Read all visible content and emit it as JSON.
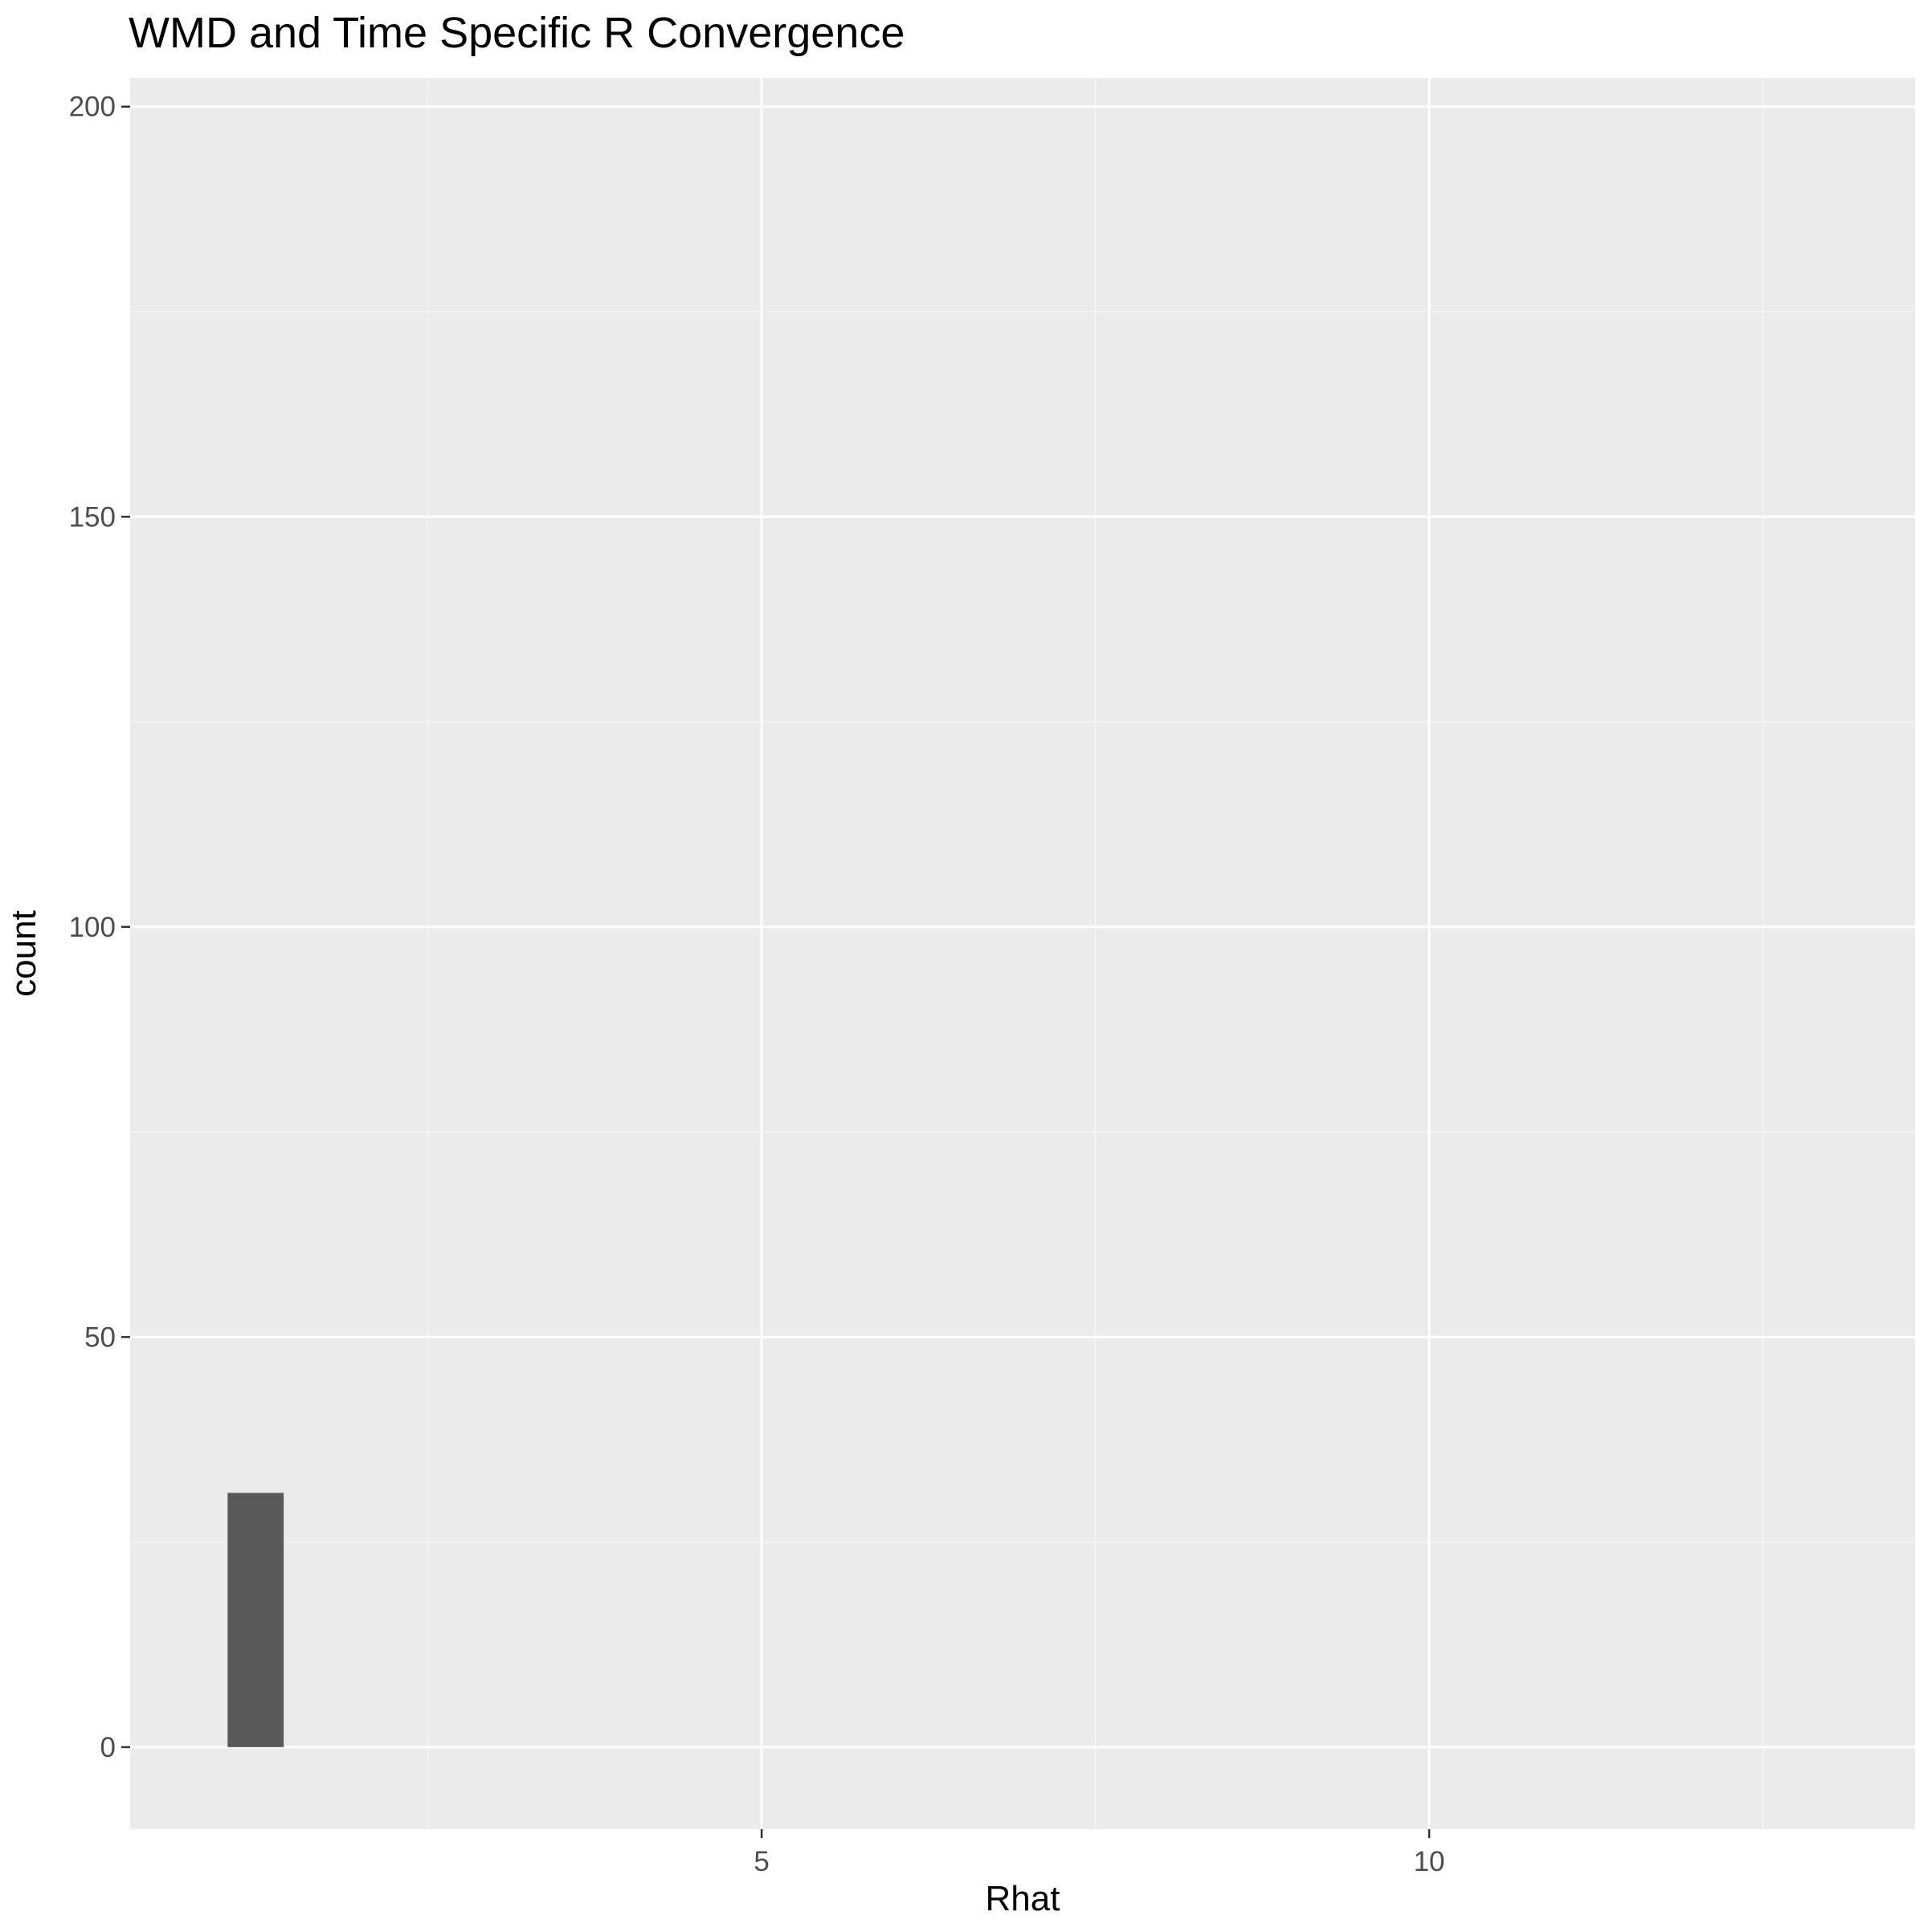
{
  "chart_data": {
    "type": "bar",
    "title": "WMD and Time Specific R Convergence",
    "xlabel": "Rhat",
    "ylabel": "count",
    "x_ticks": [
      5,
      10
    ],
    "y_ticks": [
      0,
      50,
      100,
      150,
      200
    ],
    "xlim": [
      0.27,
      13.64
    ],
    "ylim": [
      -10,
      203.5
    ],
    "bins": [
      {
        "x_start": 1.0,
        "x_end": 1.42,
        "count": 31
      }
    ],
    "grid": true,
    "legend": "none",
    "colors": {
      "panel_background": "#EBEBEB",
      "grid_major": "#FFFFFF",
      "grid_minor": "#F5F5F5",
      "bar_fill": "#595959",
      "tick_label": "#4D4D4D",
      "axis_title": "#000000"
    }
  }
}
